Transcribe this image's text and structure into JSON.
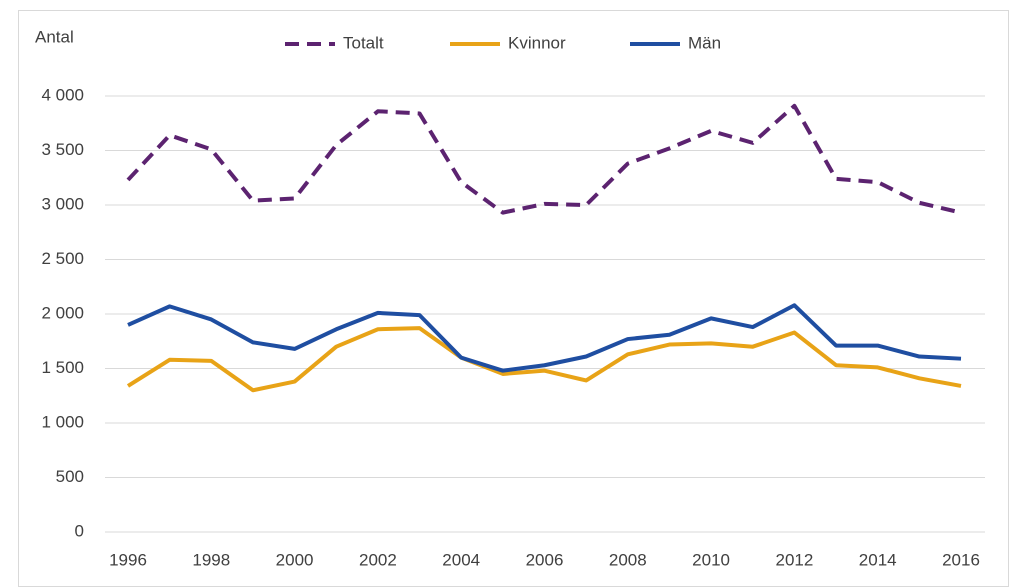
{
  "chart_data": {
    "type": "line",
    "y_label": "Antal",
    "x": [
      1996,
      1997,
      1998,
      1999,
      2000,
      2001,
      2002,
      2003,
      2004,
      2005,
      2006,
      2007,
      2008,
      2009,
      2010,
      2011,
      2012,
      2013,
      2014,
      2015,
      2016
    ],
    "series": [
      {
        "name": "Totalt",
        "color": "#5c2370",
        "style": "dashed",
        "values": [
          3230,
          3640,
          3510,
          3040,
          3060,
          3550,
          3860,
          3840,
          3210,
          2930,
          3010,
          3000,
          3380,
          3520,
          3680,
          3570,
          3910,
          3240,
          3210,
          3020,
          2930
        ]
      },
      {
        "name": "Kvinnor",
        "color": "#e8a317",
        "style": "solid",
        "values": [
          1340,
          1580,
          1570,
          1300,
          1380,
          1700,
          1860,
          1870,
          1600,
          1450,
          1480,
          1390,
          1630,
          1720,
          1730,
          1700,
          1830,
          1530,
          1510,
          1410,
          1340
        ]
      },
      {
        "name": "Män",
        "color": "#1f4ea1",
        "style": "solid",
        "values": [
          1900,
          2070,
          1950,
          1740,
          1680,
          1860,
          2010,
          1990,
          1600,
          1480,
          1530,
          1610,
          1770,
          1810,
          1960,
          1880,
          2080,
          1710,
          1710,
          1610,
          1590
        ]
      }
    ],
    "xlim": [
      1996,
      2016
    ],
    "xticks": [
      1996,
      1998,
      2000,
      2002,
      2004,
      2006,
      2008,
      2010,
      2012,
      2014,
      2016
    ],
    "ylim": [
      0,
      4000
    ],
    "yticks": [
      0,
      500,
      {
        "value": 1000,
        "label": "1 000"
      },
      {
        "value": 1500,
        "label": "1 500"
      },
      {
        "value": 2000,
        "label": "2 000"
      },
      {
        "value": 2500,
        "label": "2 500"
      },
      {
        "value": 3000,
        "label": "3 000"
      },
      {
        "value": 3500,
        "label": "3 500"
      },
      {
        "value": 4000,
        "label": "4 000"
      }
    ],
    "grid": true,
    "legend": "top"
  }
}
